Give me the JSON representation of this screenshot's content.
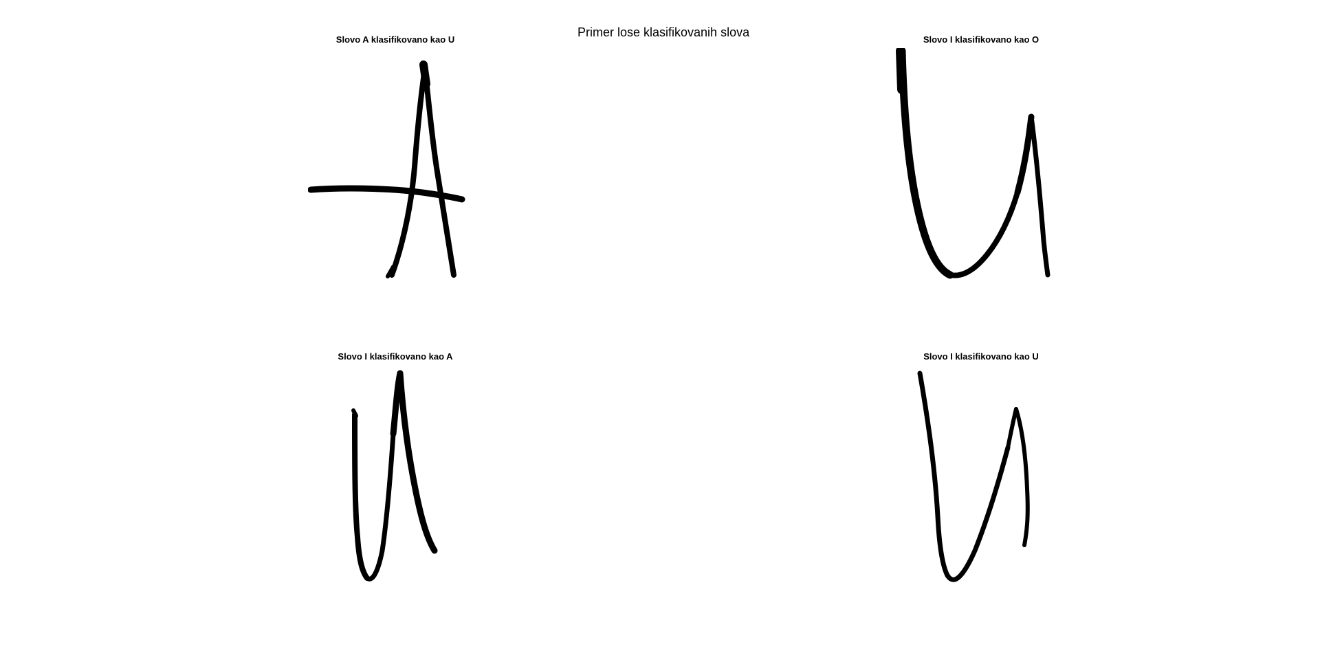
{
  "figure": {
    "title": "Primer lose klasifikovanih slova"
  },
  "panels": [
    {
      "title": "Slovo A klasifikovano kao U",
      "image_icon": "handwritten-letter-a-image"
    },
    {
      "title": "Slovo I klasifikovano kao O",
      "image_icon": "handwritten-letter-u-image"
    },
    {
      "title": "Slovo I klasifikovano kao A",
      "image_icon": "handwritten-letter-u-image"
    },
    {
      "title": "Slovo I klasifikovano kao U",
      "image_icon": "handwritten-letter-u-image"
    }
  ],
  "colors": {
    "stroke": "#000000",
    "background": "#ffffff"
  }
}
